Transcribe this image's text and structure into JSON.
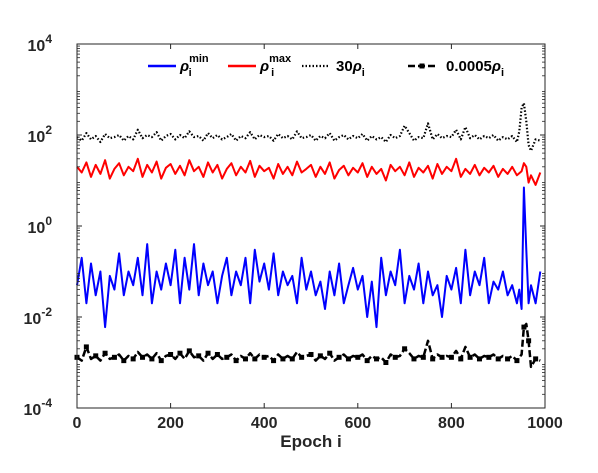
{
  "chart_data": {
    "type": "line",
    "title": "",
    "xlabel": "Epoch i",
    "ylabel": "",
    "xlim": [
      0,
      1000
    ],
    "ylim": [
      0.0001,
      10000
    ],
    "yscale": "log",
    "grid": false,
    "legend_position": "top",
    "x_ticks": [
      "0",
      "200",
      "400",
      "600",
      "800",
      "1000"
    ],
    "y_ticks": [
      {
        "base": "10",
        "exp": "-4"
      },
      {
        "base": "10",
        "exp": "-2"
      },
      {
        "base": "10",
        "exp": "0"
      },
      {
        "base": "10",
        "exp": "2"
      },
      {
        "base": "10",
        "exp": "4"
      }
    ],
    "legend": [
      {
        "sym": "ρ",
        "sub": "i",
        "sup": "min",
        "color": "#0000ff",
        "style": "solid"
      },
      {
        "sym": "ρ",
        "sub": "i",
        "sup": "max",
        "color": "#ff0000",
        "style": "solid"
      },
      {
        "prefix": "30",
        "sym": "ρ",
        "sub": "i",
        "color": "#000000",
        "style": "dotted"
      },
      {
        "prefix": "0.0005",
        "sym": "ρ",
        "sub": "i",
        "color": "#000000",
        "style": "dash-square"
      }
    ],
    "series": [
      {
        "key": "rho_min",
        "color": "#0000ff",
        "style": "solid",
        "x": [
          0,
          10,
          20,
          30,
          40,
          50,
          60,
          70,
          80,
          90,
          100,
          110,
          120,
          130,
          140,
          150,
          160,
          170,
          180,
          190,
          200,
          210,
          220,
          230,
          240,
          250,
          260,
          270,
          280,
          290,
          300,
          310,
          320,
          330,
          340,
          350,
          360,
          370,
          380,
          390,
          400,
          410,
          420,
          430,
          440,
          450,
          460,
          470,
          480,
          490,
          500,
          510,
          520,
          530,
          540,
          550,
          560,
          570,
          580,
          590,
          600,
          610,
          620,
          630,
          640,
          650,
          660,
          670,
          680,
          690,
          700,
          710,
          720,
          730,
          740,
          750,
          760,
          770,
          780,
          790,
          800,
          810,
          820,
          830,
          840,
          850,
          860,
          870,
          880,
          890,
          900,
          910,
          920,
          930,
          940,
          945,
          950,
          955,
          960,
          965,
          970,
          980,
          990
        ],
        "y": [
          0.05,
          0.2,
          0.02,
          0.15,
          0.03,
          0.1,
          0.006,
          0.08,
          0.04,
          0.25,
          0.03,
          0.1,
          0.05,
          0.2,
          0.03,
          0.4,
          0.02,
          0.1,
          0.04,
          0.15,
          0.05,
          0.3,
          0.02,
          0.2,
          0.04,
          0.4,
          0.03,
          0.15,
          0.05,
          0.1,
          0.02,
          0.08,
          0.2,
          0.03,
          0.1,
          0.05,
          0.2,
          0.02,
          0.3,
          0.06,
          0.15,
          0.04,
          0.25,
          0.03,
          0.1,
          0.05,
          0.08,
          0.02,
          0.2,
          0.04,
          0.1,
          0.03,
          0.06,
          0.015,
          0.1,
          0.03,
          0.15,
          0.02,
          0.05,
          0.12,
          0.04,
          0.08,
          0.01,
          0.06,
          0.006,
          0.2,
          0.03,
          0.1,
          0.05,
          0.3,
          0.02,
          0.08,
          0.04,
          0.15,
          0.02,
          0.1,
          0.03,
          0.05,
          0.01,
          0.08,
          0.04,
          0.12,
          0.02,
          0.3,
          0.03,
          0.1,
          0.05,
          0.2,
          0.02,
          0.06,
          0.04,
          0.1,
          0.03,
          0.05,
          0.02,
          0.04,
          0.015,
          7,
          0.3,
          0.02,
          0.05,
          0.02,
          0.1
        ]
      },
      {
        "key": "rho_max",
        "color": "#ff0000",
        "style": "solid",
        "x": [
          0,
          10,
          20,
          30,
          40,
          50,
          60,
          70,
          80,
          90,
          100,
          110,
          120,
          130,
          140,
          150,
          160,
          170,
          180,
          190,
          200,
          210,
          220,
          230,
          240,
          250,
          260,
          270,
          280,
          290,
          300,
          310,
          320,
          330,
          340,
          350,
          360,
          370,
          380,
          390,
          400,
          410,
          420,
          430,
          440,
          450,
          460,
          470,
          480,
          490,
          500,
          510,
          520,
          530,
          540,
          550,
          560,
          570,
          580,
          590,
          600,
          610,
          620,
          630,
          640,
          650,
          660,
          670,
          680,
          690,
          700,
          710,
          720,
          730,
          740,
          750,
          760,
          770,
          780,
          790,
          800,
          810,
          820,
          830,
          840,
          850,
          860,
          870,
          880,
          890,
          900,
          910,
          920,
          930,
          940,
          950,
          955,
          960,
          965,
          970,
          980,
          990
        ],
        "y": [
          20,
          15,
          25,
          12,
          22,
          14,
          28,
          11,
          18,
          24,
          13,
          20,
          16,
          30,
          12,
          22,
          15,
          26,
          11,
          19,
          23,
          14,
          21,
          13,
          28,
          16,
          20,
          12,
          25,
          15,
          22,
          11,
          18,
          24,
          13,
          20,
          15,
          27,
          12,
          21,
          16,
          19,
          11,
          23,
          14,
          20,
          13,
          26,
          15,
          18,
          22,
          12,
          20,
          14,
          25,
          11,
          17,
          21,
          13,
          19,
          15,
          24,
          12,
          20,
          14,
          18,
          10,
          22,
          16,
          20,
          13,
          25,
          12,
          19,
          15,
          21,
          11,
          23,
          14,
          20,
          16,
          30,
          12,
          18,
          14,
          22,
          13,
          19,
          15,
          21,
          12,
          18,
          14,
          20,
          13,
          16,
          24,
          20,
          9,
          13,
          8,
          15
        ]
      },
      {
        "key": "rho_30",
        "color": "#000000",
        "style": "dotted",
        "x": [
          0,
          10,
          20,
          30,
          40,
          50,
          60,
          70,
          80,
          90,
          100,
          110,
          120,
          130,
          140,
          150,
          160,
          170,
          180,
          190,
          200,
          210,
          220,
          230,
          240,
          250,
          260,
          270,
          280,
          290,
          300,
          310,
          320,
          330,
          340,
          350,
          360,
          370,
          380,
          390,
          400,
          410,
          420,
          430,
          440,
          450,
          460,
          470,
          480,
          490,
          500,
          510,
          520,
          530,
          540,
          550,
          560,
          570,
          580,
          590,
          600,
          610,
          620,
          630,
          640,
          650,
          660,
          670,
          680,
          690,
          700,
          710,
          720,
          730,
          740,
          750,
          760,
          770,
          780,
          790,
          800,
          810,
          820,
          830,
          840,
          850,
          860,
          870,
          880,
          890,
          900,
          910,
          920,
          930,
          940,
          945,
          950,
          955,
          960,
          965,
          970,
          980,
          990
        ],
        "y": [
          90,
          75,
          110,
          80,
          95,
          70,
          105,
          85,
          90,
          100,
          75,
          95,
          80,
          130,
          85,
          100,
          90,
          115,
          75,
          95,
          105,
          80,
          100,
          85,
          120,
          90,
          95,
          75,
          110,
          85,
          100,
          80,
          90,
          105,
          75,
          95,
          85,
          115,
          80,
          100,
          90,
          95,
          75,
          105,
          85,
          95,
          80,
          120,
          85,
          90,
          100,
          75,
          95,
          85,
          110,
          75,
          90,
          100,
          80,
          95,
          85,
          105,
          75,
          95,
          80,
          90,
          70,
          100,
          85,
          95,
          160,
          110,
          75,
          90,
          85,
          180,
          80,
          105,
          85,
          95,
          90,
          130,
          80,
          150,
          85,
          100,
          80,
          95,
          85,
          100,
          75,
          90,
          80,
          95,
          70,
          120,
          400,
          500,
          200,
          60,
          45,
          80,
          75
        ]
      },
      {
        "key": "rho_0005",
        "color": "#000000",
        "style": "dash-square",
        "x": [
          0,
          10,
          20,
          30,
          40,
          50,
          60,
          70,
          80,
          90,
          100,
          110,
          120,
          130,
          140,
          150,
          160,
          170,
          180,
          190,
          200,
          210,
          220,
          230,
          240,
          250,
          260,
          270,
          280,
          290,
          300,
          310,
          320,
          330,
          340,
          350,
          360,
          370,
          380,
          390,
          400,
          410,
          420,
          430,
          440,
          450,
          460,
          470,
          480,
          490,
          500,
          510,
          520,
          530,
          540,
          550,
          560,
          570,
          580,
          590,
          600,
          610,
          620,
          630,
          640,
          650,
          660,
          670,
          680,
          690,
          700,
          710,
          720,
          730,
          740,
          750,
          760,
          770,
          780,
          790,
          800,
          810,
          820,
          830,
          840,
          850,
          860,
          870,
          880,
          890,
          900,
          910,
          920,
          930,
          940,
          950,
          955,
          960,
          965,
          970,
          980,
          990
        ],
        "y": [
          0.0013,
          0.0011,
          0.0022,
          0.0012,
          0.0014,
          0.0011,
          0.0016,
          0.0012,
          0.0013,
          0.0015,
          0.0011,
          0.0014,
          0.0012,
          0.0017,
          0.0013,
          0.0015,
          0.0012,
          0.0016,
          0.0011,
          0.0014,
          0.0015,
          0.0012,
          0.0016,
          0.0012,
          0.0018,
          0.0013,
          0.0014,
          0.0011,
          0.0016,
          0.0012,
          0.0015,
          0.0012,
          0.0013,
          0.0015,
          0.0011,
          0.0014,
          0.0012,
          0.0016,
          0.0012,
          0.0015,
          0.0013,
          0.0014,
          0.0011,
          0.0015,
          0.0012,
          0.0014,
          0.0012,
          0.0017,
          0.0013,
          0.0014,
          0.0015,
          0.0011,
          0.0014,
          0.0012,
          0.0016,
          0.0011,
          0.0013,
          0.0015,
          0.0012,
          0.0014,
          0.0013,
          0.0015,
          0.0011,
          0.0014,
          0.0012,
          0.0013,
          0.001,
          0.0015,
          0.0013,
          0.0014,
          0.002,
          0.0016,
          0.0012,
          0.0014,
          0.0013,
          0.003,
          0.0012,
          0.0015,
          0.0013,
          0.0014,
          0.0013,
          0.0018,
          0.0012,
          0.0022,
          0.0013,
          0.0015,
          0.0012,
          0.0014,
          0.0013,
          0.0015,
          0.0012,
          0.0014,
          0.0012,
          0.0014,
          0.0011,
          0.0015,
          0.006,
          0.007,
          0.003,
          0.0008,
          0.0012,
          0.0011
        ]
      }
    ]
  }
}
